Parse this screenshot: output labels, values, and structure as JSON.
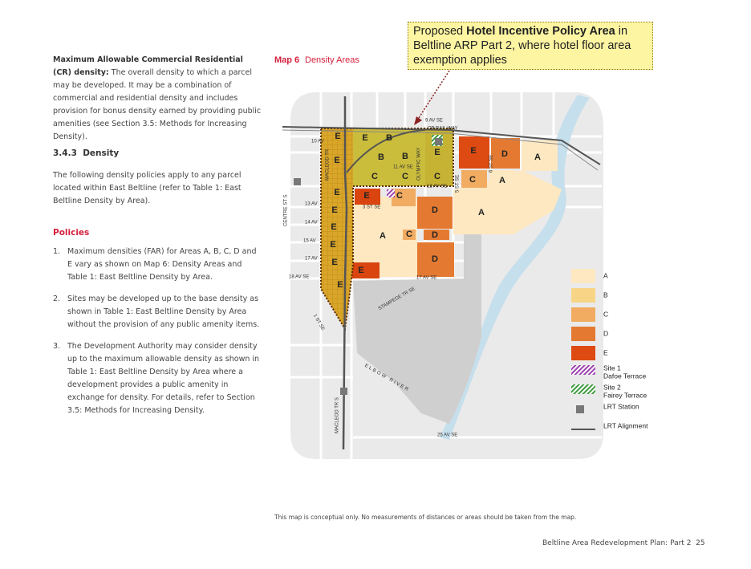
{
  "definition": {
    "term": "Maximum Allowable Commercial Residential (CR) density:",
    "text": "The overall density to which a parcel may be developed. It may be a combination of commercial and residential density and includes provision for bonus density earned by providing public amenities",
    "reference": "(see Section 3.5: Methods for Increasing Density)."
  },
  "section": {
    "number": "3.4.3",
    "title": "Density",
    "text": "The following density policies apply to any parcel located within East Beltline (refer to Table 1: East Beltline Density by Area)."
  },
  "policies": {
    "title": "Policies",
    "items": [
      {
        "number": "1.",
        "text": "Maximum densities (FAR) for Areas A, B, C, D and E vary as shown on Map 6: Density Areas and Table 1: East Beltline Density by Area."
      },
      {
        "number": "2.",
        "text": "Sites may be developed up to the base density as shown in Table 1: East Beltline Density by Area without the provision of any public amenity items."
      },
      {
        "number": "3.",
        "text": "The Development Authority may consider density up to the maximum allowable density as shown in Table 1: East Beltline Density by Area where a development provides a public amenity in exchange for density. For details, refer to Section 3.5: Methods for Increasing Density."
      }
    ]
  },
  "map": {
    "label": "Map 6",
    "title": "Density Areas",
    "callout": {
      "prefix": "Proposed",
      "emphasis": "Hotel Incentive Policy Area",
      "suffix": "in Beltline ARP Part 2, where hotel floor area exemption applies"
    },
    "zones": [
      "E",
      "B",
      "E",
      "B",
      "B",
      "E",
      "C",
      "C",
      "C",
      "E",
      "D",
      "A",
      "C",
      "A",
      "A",
      "E",
      "C",
      "D",
      "A",
      "C",
      "D",
      "D",
      "E",
      "E",
      "E",
      "E",
      "E",
      "E",
      "E",
      "E"
    ],
    "streets": [
      "9 AV SE",
      "CP RAIL WAY",
      "10 AV",
      "11 AV SE",
      "12 AV SE",
      "13 AV",
      "14 AV",
      "15 AV",
      "17 AV",
      "18 AV SE",
      "17 AV SE",
      "STAMPEDE TR SE",
      "3 ST SE",
      "5 ST SE",
      "6 ST SE",
      "CENTRE ST S",
      "MACLEOD TR S",
      "1 ST SE",
      "ELBOW RIVER",
      "25 AV SE",
      "OLYMPIC WAY",
      "MACLEOD TR"
    ],
    "legend": [
      {
        "name": "A"
      },
      {
        "name": "B"
      },
      {
        "name": "C"
      },
      {
        "name": "D"
      },
      {
        "name": "E"
      },
      {
        "name": "Site 1",
        "detail": "Dafoe Terrace"
      },
      {
        "name": "Site 2",
        "detail": "Fairey Terrace"
      },
      {
        "name": "LRT Station"
      },
      {
        "name": "LRT Alignment"
      }
    ]
  },
  "note": "This map is conceptual only. No measurements of distances or areas should be taken from the map.",
  "footer": {
    "text": "Beltline Area Redevelopment Plan: Part 2",
    "page": "25"
  }
}
